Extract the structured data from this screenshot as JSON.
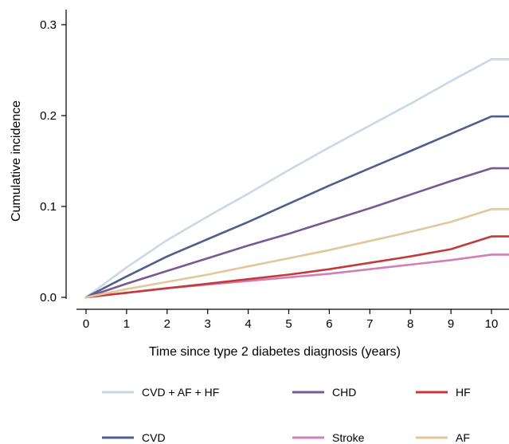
{
  "chart_data": {
    "type": "line",
    "title": "",
    "xlabel": "Time since type 2 diabetes diagnosis (years)",
    "ylabel": "Cumulative incidence",
    "xlim": [
      0,
      10.5
    ],
    "ylim": [
      0,
      0.3
    ],
    "xticks": [
      "0",
      "1",
      "2",
      "3",
      "4",
      "5",
      "6",
      "7",
      "8",
      "9",
      "10"
    ],
    "yticks": [
      "0.0",
      "0.1",
      "0.2",
      "0.3"
    ],
    "grid": false,
    "legend_position": "bottom",
    "x": [
      0,
      1,
      2,
      3,
      4,
      5,
      6,
      7,
      8,
      9,
      10,
      10.5
    ],
    "series": [
      {
        "name": "CVD + AF + HF",
        "color": "#c9d8e6",
        "values": [
          0,
          0.033,
          0.063,
          0.089,
          0.114,
          0.14,
          0.165,
          0.189,
          0.213,
          0.238,
          0.262,
          0.262
        ]
      },
      {
        "name": "CVD",
        "color": "#4e5f8c",
        "values": [
          0,
          0.023,
          0.045,
          0.064,
          0.083,
          0.103,
          0.123,
          0.142,
          0.161,
          0.18,
          0.199,
          0.199
        ]
      },
      {
        "name": "CHD",
        "color": "#755b91",
        "values": [
          0,
          0.015,
          0.029,
          0.043,
          0.057,
          0.07,
          0.084,
          0.098,
          0.113,
          0.128,
          0.142,
          0.142
        ]
      },
      {
        "name": "Stroke",
        "color": "#d17fb8",
        "values": [
          0,
          0.005,
          0.01,
          0.014,
          0.018,
          0.022,
          0.026,
          0.031,
          0.036,
          0.041,
          0.047,
          0.047
        ]
      },
      {
        "name": "HF",
        "color": "#c43a3a",
        "values": [
          0,
          0.005,
          0.01,
          0.015,
          0.02,
          0.025,
          0.031,
          0.038,
          0.045,
          0.053,
          0.067,
          0.067
        ]
      },
      {
        "name": "AF",
        "color": "#e4c69c",
        "values": [
          0,
          0.009,
          0.017,
          0.025,
          0.034,
          0.043,
          0.052,
          0.062,
          0.072,
          0.083,
          0.097,
          0.097
        ]
      }
    ],
    "legend_order": [
      "CVD + AF + HF",
      "CHD",
      "HF",
      "CVD",
      "Stroke",
      "AF"
    ]
  }
}
